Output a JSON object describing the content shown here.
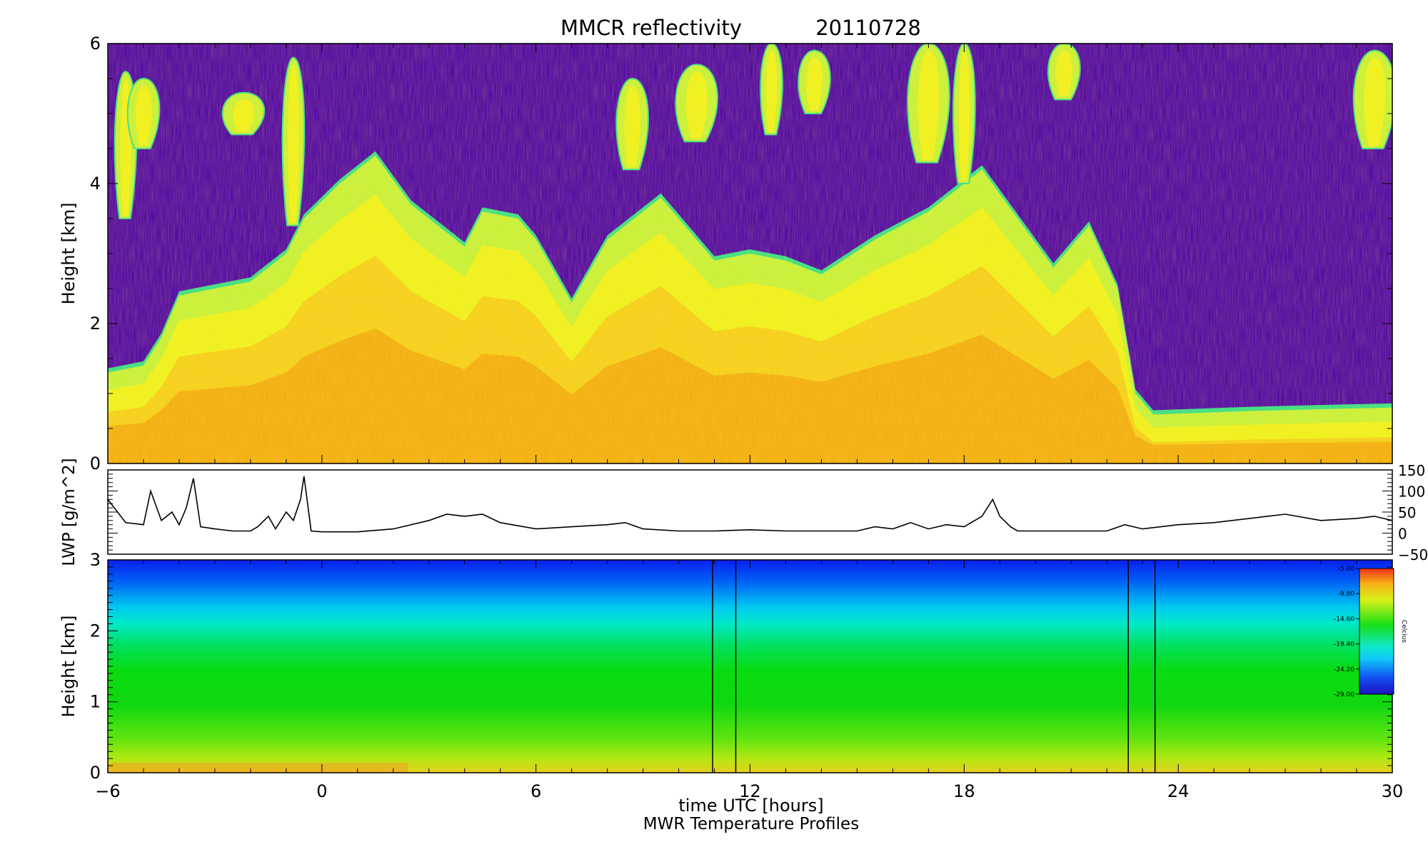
{
  "chart_data": [
    {
      "type": "heatmap",
      "panel": "reflectivity",
      "title": "MMCR reflectivity",
      "date": "20110728",
      "ylabel": "Height [km]",
      "ylim": [
        0,
        6
      ],
      "xlim": [
        -6,
        30
      ],
      "yticks": [
        "0",
        "2",
        "4",
        "6"
      ],
      "colors": {
        "background": "#5208a6",
        "edge": "#38e088",
        "thin": "#c8f23a",
        "light": "#f0f21e",
        "mid": "#f6d01c",
        "dense": "#f2a40e"
      },
      "description_points": {
        "cloud_top_km": [
          [
            -6.0,
            1.3
          ],
          [
            -5.0,
            1.4
          ],
          [
            -4.5,
            1.8
          ],
          [
            -4.0,
            2.4
          ],
          [
            -3.0,
            2.5
          ],
          [
            -2.0,
            2.6
          ],
          [
            -1.0,
            3.0
          ],
          [
            -0.5,
            3.5
          ],
          [
            0.5,
            4.0
          ],
          [
            1.5,
            4.4
          ],
          [
            2.5,
            3.7
          ],
          [
            3.5,
            3.3
          ],
          [
            4.0,
            3.1
          ],
          [
            4.5,
            3.6
          ],
          [
            5.5,
            3.5
          ],
          [
            6.0,
            3.2
          ],
          [
            7.0,
            2.3
          ],
          [
            8.0,
            3.2
          ],
          [
            9.5,
            3.8
          ],
          [
            11.0,
            2.9
          ],
          [
            12.0,
            3.0
          ],
          [
            13.0,
            2.9
          ],
          [
            14.0,
            2.7
          ],
          [
            15.5,
            3.2
          ],
          [
            17.0,
            3.6
          ],
          [
            18.5,
            4.2
          ],
          [
            19.5,
            3.5
          ],
          [
            20.5,
            2.8
          ],
          [
            21.5,
            3.4
          ],
          [
            22.3,
            2.5
          ],
          [
            22.8,
            1.0
          ],
          [
            23.3,
            0.7
          ],
          [
            26.0,
            0.75
          ],
          [
            30.0,
            0.8
          ]
        ],
        "upper_cloud_tufts": [
          [
            -5.5,
            3.5,
            5.6
          ],
          [
            -5.0,
            4.5,
            5.5
          ],
          [
            -2.2,
            4.7,
            5.3
          ],
          [
            -0.8,
            3.4,
            5.8
          ],
          [
            8.7,
            4.2,
            5.5
          ],
          [
            10.5,
            4.6,
            5.7
          ],
          [
            12.6,
            4.7,
            6.0
          ],
          [
            13.8,
            5.0,
            5.9
          ],
          [
            17.0,
            4.3,
            6.0
          ],
          [
            18.0,
            4.0,
            6.0
          ],
          [
            20.8,
            5.2,
            6.0
          ],
          [
            29.5,
            4.5,
            5.9
          ]
        ]
      }
    },
    {
      "type": "line",
      "panel": "lwp",
      "ylabel": "LWP [g/m^2]",
      "ylim": [
        -50,
        150
      ],
      "yticks": [
        "150",
        "100",
        "50",
        "0",
        "−50"
      ],
      "x": [
        -6.0,
        -5.5,
        -5.0,
        -4.8,
        -4.5,
        -4.2,
        -4.0,
        -3.8,
        -3.6,
        -3.4,
        -3.0,
        -2.5,
        -2.0,
        -1.8,
        -1.5,
        -1.3,
        -1.0,
        -0.8,
        -0.6,
        -0.5,
        -0.3,
        0.0,
        1.0,
        2.0,
        3.0,
        3.5,
        4.0,
        4.5,
        5.0,
        6.0,
        7.0,
        8.0,
        8.5,
        9.0,
        10.0,
        11.0,
        12.0,
        13.0,
        14.0,
        15.0,
        15.5,
        16.0,
        16.5,
        17.0,
        17.5,
        18.0,
        18.5,
        18.8,
        19.0,
        19.3,
        19.5,
        20.0,
        21.0,
        22.0,
        22.5,
        23.0,
        24.0,
        25.0,
        26.0,
        27.0,
        28.0,
        29.0,
        29.5,
        30.0
      ],
      "y": [
        80,
        25,
        20,
        100,
        30,
        50,
        20,
        60,
        130,
        15,
        10,
        5,
        5,
        15,
        40,
        10,
        50,
        30,
        80,
        135,
        5,
        3,
        3,
        10,
        30,
        45,
        40,
        45,
        25,
        10,
        15,
        20,
        25,
        10,
        5,
        5,
        8,
        5,
        5,
        5,
        15,
        10,
        25,
        10,
        20,
        15,
        40,
        80,
        40,
        15,
        5,
        5,
        5,
        5,
        20,
        10,
        20,
        25,
        35,
        45,
        30,
        35,
        40,
        30
      ]
    },
    {
      "type": "heatmap",
      "panel": "temperature",
      "title": "MWR Temperature Profiles",
      "xlabel": "time UTC [hours]",
      "ylabel": "Height [km]",
      "ylim": [
        0,
        3
      ],
      "xlim": [
        -6,
        30
      ],
      "yticks": [
        "0",
        "1",
        "2",
        "3"
      ],
      "xticks": [
        "−6",
        "0",
        "6",
        "12",
        "18",
        "24",
        "30"
      ],
      "gap_lines_hours": [
        10.95,
        11.6,
        22.6,
        23.35
      ],
      "colorbar": {
        "label": "Celcius",
        "ticks": [
          "-5.00",
          "-9.80",
          "-14.60",
          "-19.40",
          "-24.20",
          "-29.00"
        ],
        "range": [
          -29.0,
          -5.0
        ]
      }
    }
  ]
}
